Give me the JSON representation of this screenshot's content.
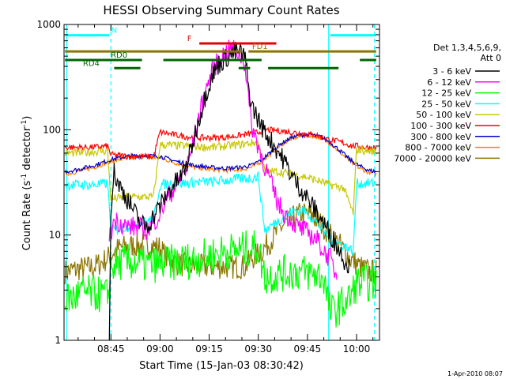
{
  "chart_data": {
    "type": "line",
    "title": "HESSI Observing Summary Count Rates",
    "xlabel": "Start Time (15-Jan-03 08:30:42)",
    "ylabel_main": "Count Rate (s",
    "ylabel_sup1": "-1",
    "ylabel_mid": " detector",
    "ylabel_sup2": "-1",
    "ylabel_end": ")",
    "yscale": "log",
    "ylim": [
      1,
      1000
    ],
    "xlim": [
      30.7,
      127
    ],
    "x_unit": "minutes after 08:00",
    "x_ticks": [
      {
        "v": 45,
        "label": "08:45"
      },
      {
        "v": 60,
        "label": "09:00"
      },
      {
        "v": 75,
        "label": "09:15"
      },
      {
        "v": 90,
        "label": "09:30"
      },
      {
        "v": 105,
        "label": "09:45"
      },
      {
        "v": 120,
        "label": "10:00"
      }
    ],
    "y_ticks": [
      {
        "v": 1,
        "label": "1"
      },
      {
        "v": 10,
        "label": "10"
      },
      {
        "v": 100,
        "label": "100"
      },
      {
        "v": 1000,
        "label": "1000"
      }
    ],
    "legend_header_1": "Det 1,3,4,5,6,9,",
    "legend_header_2": "Att 0",
    "timestamp": "1-Apr-2010 08:07",
    "series": [
      {
        "name": "3 - 6 keV",
        "color": "#000000",
        "noise": 0.1,
        "points": [
          [
            44.5,
            1
          ],
          [
            45,
            18
          ],
          [
            46,
            40
          ],
          [
            47,
            32
          ],
          [
            48,
            28
          ],
          [
            50,
            22
          ],
          [
            52,
            17
          ],
          [
            54,
            13
          ],
          [
            56,
            12
          ],
          [
            58,
            15
          ],
          [
            60,
            19
          ],
          [
            62,
            24
          ],
          [
            64,
            30
          ],
          [
            66,
            34
          ],
          [
            68,
            45
          ],
          [
            70,
            75
          ],
          [
            72,
            130
          ],
          [
            74,
            220
          ],
          [
            76,
            330
          ],
          [
            78,
            420
          ],
          [
            80,
            480
          ],
          [
            82,
            520
          ],
          [
            84,
            560
          ],
          [
            86,
            480
          ],
          [
            87,
            250
          ],
          [
            88,
            170
          ],
          [
            90,
            125
          ],
          [
            92,
            95
          ],
          [
            95,
            70
          ],
          [
            98,
            50
          ],
          [
            100,
            38
          ],
          [
            102,
            30
          ],
          [
            104,
            25
          ],
          [
            106,
            20
          ],
          [
            108,
            16
          ],
          [
            110,
            13
          ],
          [
            112,
            10
          ],
          [
            114,
            8
          ],
          [
            116,
            6
          ],
          [
            118,
            5
          ]
        ]
      },
      {
        "name": "6 - 12 keV",
        "color": "#ff00ff",
        "noise": 0.1,
        "points": [
          [
            44.5,
            9
          ],
          [
            46,
            14
          ],
          [
            48,
            13
          ],
          [
            50,
            12
          ],
          [
            53,
            12
          ],
          [
            56,
            11
          ],
          [
            58,
            13
          ],
          [
            60,
            16
          ],
          [
            62,
            22
          ],
          [
            65,
            30
          ],
          [
            68,
            42
          ],
          [
            70,
            70
          ],
          [
            72,
            140
          ],
          [
            74,
            240
          ],
          [
            76,
            360
          ],
          [
            78,
            470
          ],
          [
            80,
            540
          ],
          [
            82,
            600
          ],
          [
            84,
            540
          ],
          [
            86,
            420
          ],
          [
            87,
            200
          ],
          [
            88,
            110
          ],
          [
            90,
            70
          ],
          [
            92,
            45
          ],
          [
            94,
            30
          ],
          [
            96,
            20
          ],
          [
            98,
            16
          ],
          [
            100,
            14
          ],
          [
            102,
            12
          ],
          [
            104,
            11
          ],
          [
            106,
            10
          ],
          [
            108,
            9
          ],
          [
            110,
            7
          ],
          [
            112,
            6
          ],
          [
            114,
            4
          ]
        ]
      },
      {
        "name": "12 - 25 keV",
        "color": "#00ff00",
        "noise": 0.18,
        "points": [
          [
            31,
            2.5
          ],
          [
            33,
            2.5
          ],
          [
            36,
            2.8
          ],
          [
            40,
            2.8
          ],
          [
            44,
            2.6
          ],
          [
            45,
            5
          ],
          [
            48,
            5.5
          ],
          [
            52,
            5.5
          ],
          [
            56,
            5.2
          ],
          [
            60,
            5.3
          ],
          [
            64,
            5.5
          ],
          [
            68,
            5.7
          ],
          [
            72,
            6
          ],
          [
            76,
            6.5
          ],
          [
            80,
            7
          ],
          [
            84,
            7.2
          ],
          [
            88,
            7.5
          ],
          [
            90,
            7.5
          ],
          [
            92,
            4
          ],
          [
            96,
            4.2
          ],
          [
            100,
            4.5
          ],
          [
            104,
            4.4
          ],
          [
            108,
            4.2
          ],
          [
            110,
            4
          ],
          [
            112,
            1.8
          ],
          [
            118,
            2.5
          ],
          [
            120,
            3.5
          ],
          [
            124,
            3.5
          ],
          [
            126,
            3.5
          ]
        ]
      },
      {
        "name": "25 - 50 keV",
        "color": "#00ffff",
        "noise": 0.05,
        "points": [
          [
            31,
            30
          ],
          [
            35,
            30
          ],
          [
            40,
            30
          ],
          [
            44,
            31
          ],
          [
            45,
            11
          ],
          [
            50,
            12
          ],
          [
            54,
            13
          ],
          [
            58,
            14
          ],
          [
            60,
            30
          ],
          [
            64,
            31
          ],
          [
            68,
            31
          ],
          [
            72,
            32
          ],
          [
            76,
            32
          ],
          [
            80,
            33
          ],
          [
            84,
            34
          ],
          [
            88,
            35
          ],
          [
            90,
            36
          ],
          [
            92,
            11
          ],
          [
            95,
            13
          ],
          [
            98,
            15
          ],
          [
            101,
            17
          ],
          [
            104,
            17
          ],
          [
            107,
            14
          ],
          [
            110,
            11
          ],
          [
            112,
            9
          ],
          [
            116,
            8
          ],
          [
            119,
            7
          ],
          [
            120,
            31
          ],
          [
            123,
            31
          ],
          [
            126,
            31
          ]
        ]
      },
      {
        "name": "50 - 100 keV",
        "color": "#c8c800",
        "noise": 0.04,
        "points": [
          [
            31,
            60
          ],
          [
            35,
            60
          ],
          [
            40,
            62
          ],
          [
            44,
            63
          ],
          [
            45,
            22
          ],
          [
            50,
            23
          ],
          [
            54,
            23
          ],
          [
            58,
            23
          ],
          [
            60,
            72
          ],
          [
            64,
            71
          ],
          [
            68,
            70
          ],
          [
            72,
            69
          ],
          [
            76,
            68
          ],
          [
            80,
            70
          ],
          [
            84,
            72
          ],
          [
            88,
            75
          ],
          [
            90,
            76
          ],
          [
            92,
            40
          ],
          [
            96,
            40
          ],
          [
            100,
            38
          ],
          [
            104,
            36
          ],
          [
            108,
            33
          ],
          [
            112,
            30
          ],
          [
            116,
            28
          ],
          [
            119,
            16
          ],
          [
            120,
            65
          ],
          [
            123,
            63
          ],
          [
            126,
            62
          ]
        ]
      },
      {
        "name": "100 - 300 keV",
        "color": "#ff0000",
        "noise": 0.03,
        "points": [
          [
            31,
            68
          ],
          [
            35,
            68
          ],
          [
            40,
            68
          ],
          [
            44,
            70
          ],
          [
            45,
            58
          ],
          [
            50,
            56
          ],
          [
            54,
            56
          ],
          [
            58,
            55
          ],
          [
            60,
            95
          ],
          [
            64,
            90
          ],
          [
            68,
            86
          ],
          [
            72,
            84
          ],
          [
            76,
            84
          ],
          [
            80,
            85
          ],
          [
            84,
            88
          ],
          [
            88,
            92
          ],
          [
            90,
            95
          ],
          [
            92,
            100
          ],
          [
            96,
            98
          ],
          [
            100,
            95
          ],
          [
            104,
            92
          ],
          [
            108,
            88
          ],
          [
            112,
            80
          ],
          [
            116,
            75
          ],
          [
            119,
            70
          ],
          [
            120,
            70
          ],
          [
            123,
            68
          ],
          [
            126,
            67
          ]
        ]
      },
      {
        "name": "300 - 800 keV",
        "color": "#0000c8",
        "noise": 0.02,
        "points": [
          [
            31,
            40
          ],
          [
            35,
            42
          ],
          [
            40,
            46
          ],
          [
            45,
            52
          ],
          [
            50,
            56
          ],
          [
            55,
            57
          ],
          [
            60,
            56
          ],
          [
            65,
            50
          ],
          [
            70,
            46
          ],
          [
            75,
            44
          ],
          [
            80,
            43
          ],
          [
            85,
            44
          ],
          [
            88,
            46
          ],
          [
            91,
            52
          ],
          [
            94,
            62
          ],
          [
            97,
            74
          ],
          [
            100,
            84
          ],
          [
            103,
            89
          ],
          [
            106,
            90
          ],
          [
            109,
            86
          ],
          [
            112,
            76
          ],
          [
            115,
            63
          ],
          [
            118,
            52
          ],
          [
            121,
            45
          ],
          [
            124,
            41
          ],
          [
            126,
            40
          ]
        ]
      },
      {
        "name": "800 - 7000 keV",
        "color": "#ff8000",
        "noise": 0.02,
        "points": [
          [
            31,
            38
          ],
          [
            35,
            40
          ],
          [
            40,
            44
          ],
          [
            45,
            50
          ],
          [
            50,
            54
          ],
          [
            55,
            55
          ],
          [
            60,
            54
          ],
          [
            65,
            48
          ],
          [
            70,
            44
          ],
          [
            75,
            42
          ],
          [
            80,
            41
          ],
          [
            85,
            42
          ],
          [
            88,
            44
          ],
          [
            91,
            50
          ],
          [
            94,
            60
          ],
          [
            97,
            72
          ],
          [
            100,
            82
          ],
          [
            103,
            87
          ],
          [
            106,
            88
          ],
          [
            109,
            84
          ],
          [
            112,
            74
          ],
          [
            115,
            61
          ],
          [
            118,
            50
          ],
          [
            121,
            43
          ],
          [
            124,
            39
          ],
          [
            126,
            38
          ]
        ]
      },
      {
        "name": "7000 - 20000 keV",
        "color": "#8b7500",
        "noise": 0.12,
        "points": [
          [
            31,
            4.5
          ],
          [
            36,
            4.8
          ],
          [
            40,
            5
          ],
          [
            44,
            6
          ],
          [
            46,
            7
          ],
          [
            48,
            7.6
          ],
          [
            52,
            8
          ],
          [
            56,
            8
          ],
          [
            60,
            7.6
          ],
          [
            62,
            6
          ],
          [
            66,
            5.3
          ],
          [
            70,
            5
          ],
          [
            74,
            5
          ],
          [
            78,
            5
          ],
          [
            82,
            5
          ],
          [
            86,
            5
          ],
          [
            88,
            6
          ],
          [
            91,
            7
          ],
          [
            94,
            9
          ],
          [
            97,
            12
          ],
          [
            100,
            14
          ],
          [
            103,
            16
          ],
          [
            106,
            15.5
          ],
          [
            109,
            13
          ],
          [
            112,
            10
          ],
          [
            115,
            8
          ],
          [
            118,
            6
          ],
          [
            121,
            5
          ],
          [
            124,
            4.5
          ],
          [
            126,
            4.5
          ]
        ]
      }
    ],
    "state_bars": [
      {
        "label": "N",
        "color": "#00ffff",
        "y": 790,
        "segments": [
          [
            31,
            44.5
          ],
          [
            112,
            126
          ]
        ],
        "label_at": 46
      },
      {
        "label": "F",
        "color": "#e00000",
        "y": 660,
        "segments": [
          [
            72,
            95.5
          ]
        ],
        "label_at": 69
      },
      {
        "label": "FD1",
        "color": "#8b7500",
        "y": 555,
        "segments": [
          [
            31,
            85
          ],
          [
            87,
            126
          ]
        ],
        "label_at": 90.5
      },
      {
        "label": "RD0",
        "color": "#006400",
        "y": 460,
        "segments": [
          [
            31,
            54.5
          ],
          [
            61,
            91
          ],
          [
            121,
            126
          ]
        ],
        "label_at": 47.5
      },
      {
        "label": "RD4",
        "color": "#006400",
        "y": 385,
        "segments": [
          [
            46,
            54
          ],
          [
            84,
            87.5
          ],
          [
            93,
            114.5
          ]
        ],
        "label_at": 39
      }
    ],
    "vlines": [
      {
        "x": 31.5,
        "color": "#00ffff",
        "style": "solid"
      },
      {
        "x": 45.0,
        "color": "#00ffff",
        "style": "dashed"
      },
      {
        "x": 111.5,
        "color": "#00ffff",
        "style": "solid"
      },
      {
        "x": 125.5,
        "color": "#00ffff",
        "style": "dashed"
      }
    ]
  }
}
